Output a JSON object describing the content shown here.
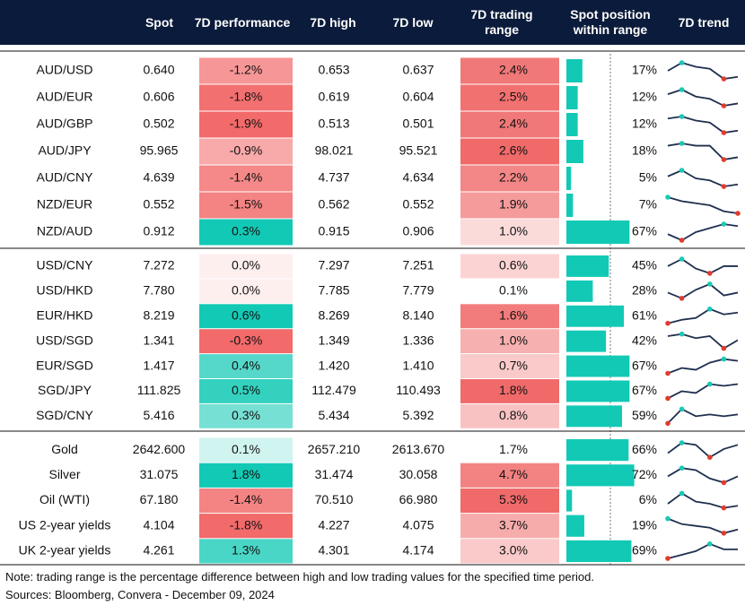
{
  "table": {
    "headers": [
      "Spot",
      "7D performance",
      "7D high",
      "7D low",
      "7D trading range",
      "Spot position within range",
      "7D trend"
    ],
    "groups": [
      {
        "rows": [
          {
            "pair": "AUD/USD",
            "spot": "0.640",
            "perf": "-1.2%",
            "high": "0.653",
            "low": "0.637",
            "range": "2.4%",
            "position": "17%",
            "trend": [
              5,
              9,
              7,
              6,
              1,
              2
            ]
          },
          {
            "pair": "AUD/EUR",
            "spot": "0.606",
            "perf": "-1.8%",
            "high": "0.619",
            "low": "0.604",
            "range": "2.5%",
            "position": "12%",
            "trend": [
              7,
              9,
              6,
              5,
              2,
              3
            ]
          },
          {
            "pair": "AUD/GBP",
            "spot": "0.502",
            "perf": "-1.9%",
            "high": "0.513",
            "low": "0.501",
            "range": "2.4%",
            "position": "12%",
            "trend": [
              8,
              9,
              7,
              6,
              1,
              2
            ]
          },
          {
            "pair": "AUD/JPY",
            "spot": "95.965",
            "perf": "-0.9%",
            "high": "98.021",
            "low": "95.521",
            "range": "2.6%",
            "position": "18%",
            "trend": [
              8,
              9,
              8,
              8,
              2,
              3
            ]
          },
          {
            "pair": "AUD/CNY",
            "spot": "4.639",
            "perf": "-1.4%",
            "high": "4.737",
            "low": "4.634",
            "range": "2.2%",
            "position": "5%",
            "trend": [
              6,
              9,
              5,
              4,
              1,
              2
            ]
          },
          {
            "pair": "NZD/EUR",
            "spot": "0.552",
            "perf": "-1.5%",
            "high": "0.562",
            "low": "0.552",
            "range": "1.9%",
            "position": "7%",
            "trend": [
              9,
              7,
              6,
              5,
              2,
              1
            ]
          },
          {
            "pair": "NZD/AUD",
            "spot": "0.912",
            "perf": "0.3%",
            "high": "0.915",
            "low": "0.906",
            "range": "1.0%",
            "position": "67%",
            "trend": [
              4,
              1,
              5,
              7,
              9,
              8
            ]
          }
        ]
      },
      {
        "rows": [
          {
            "pair": "USD/CNY",
            "spot": "7.272",
            "perf": "0.0%",
            "high": "7.297",
            "low": "7.251",
            "range": "0.6%",
            "position": "45%",
            "trend": [
              6,
              9,
              5,
              3,
              6,
              6
            ]
          },
          {
            "pair": "USD/HKD",
            "spot": "7.780",
            "perf": "0.0%",
            "high": "7.785",
            "low": "7.779",
            "range": "0.1%",
            "position": "28%",
            "trend": [
              6,
              4,
              7,
              9,
              5,
              6
            ]
          },
          {
            "pair": "EUR/HKD",
            "spot": "8.219",
            "perf": "0.6%",
            "high": "8.269",
            "low": "8.140",
            "range": "1.6%",
            "position": "61%",
            "trend": [
              1,
              3,
              4,
              9,
              6,
              7
            ]
          },
          {
            "pair": "USD/SGD",
            "spot": "1.341",
            "perf": "-0.3%",
            "high": "1.349",
            "low": "1.336",
            "range": "1.0%",
            "position": "42%",
            "trend": [
              8,
              9,
              7,
              8,
              2,
              6
            ]
          },
          {
            "pair": "EUR/SGD",
            "spot": "1.417",
            "perf": "0.4%",
            "high": "1.420",
            "low": "1.410",
            "range": "0.7%",
            "position": "67%",
            "trend": [
              1,
              4,
              3,
              7,
              9,
              8
            ]
          },
          {
            "pair": "SGD/JPY",
            "spot": "111.825",
            "perf": "0.5%",
            "high": "112.479",
            "low": "110.493",
            "range": "1.8%",
            "position": "67%",
            "trend": [
              1,
              5,
              4,
              9,
              8,
              9
            ]
          },
          {
            "pair": "SGD/CNY",
            "spot": "5.416",
            "perf": "0.3%",
            "high": "5.434",
            "low": "5.392",
            "range": "0.8%",
            "position": "59%",
            "trend": [
              1,
              9,
              5,
              6,
              5,
              6
            ]
          }
        ]
      },
      {
        "rows": [
          {
            "pair": "Gold",
            "spot": "2642.600",
            "perf": "0.1%",
            "high": "2657.210",
            "low": "2613.670",
            "range": "1.7%",
            "position": "66%",
            "trend": [
              4,
              9,
              8,
              2,
              6,
              8
            ]
          },
          {
            "pair": "Silver",
            "spot": "31.075",
            "perf": "1.8%",
            "high": "31.474",
            "low": "30.058",
            "range": "4.7%",
            "position": "72%",
            "trend": [
              5,
              9,
              8,
              4,
              2,
              5
            ]
          },
          {
            "pair": "Oil (WTI)",
            "spot": "67.180",
            "perf": "-1.4%",
            "high": "70.510",
            "low": "66.980",
            "range": "5.3%",
            "position": "6%",
            "trend": [
              4,
              9,
              5,
              4,
              2,
              3
            ]
          },
          {
            "pair": "US 2-year yields",
            "spot": "4.104",
            "perf": "-1.8%",
            "high": "4.227",
            "low": "4.075",
            "range": "3.7%",
            "position": "19%",
            "trend": [
              9,
              6,
              5,
              4,
              1,
              3
            ]
          },
          {
            "pair": "UK 2-year yields",
            "spot": "4.261",
            "perf": "1.3%",
            "high": "4.301",
            "low": "4.174",
            "range": "3.0%",
            "position": "69%",
            "trend": [
              1,
              3,
              5,
              9,
              6,
              6
            ]
          }
        ]
      }
    ]
  },
  "note": "Note: trading range is the percentage difference between high and low trading values for the specified time period.",
  "sources": "Sources: Bloomberg, Convera - December 09, 2024"
}
